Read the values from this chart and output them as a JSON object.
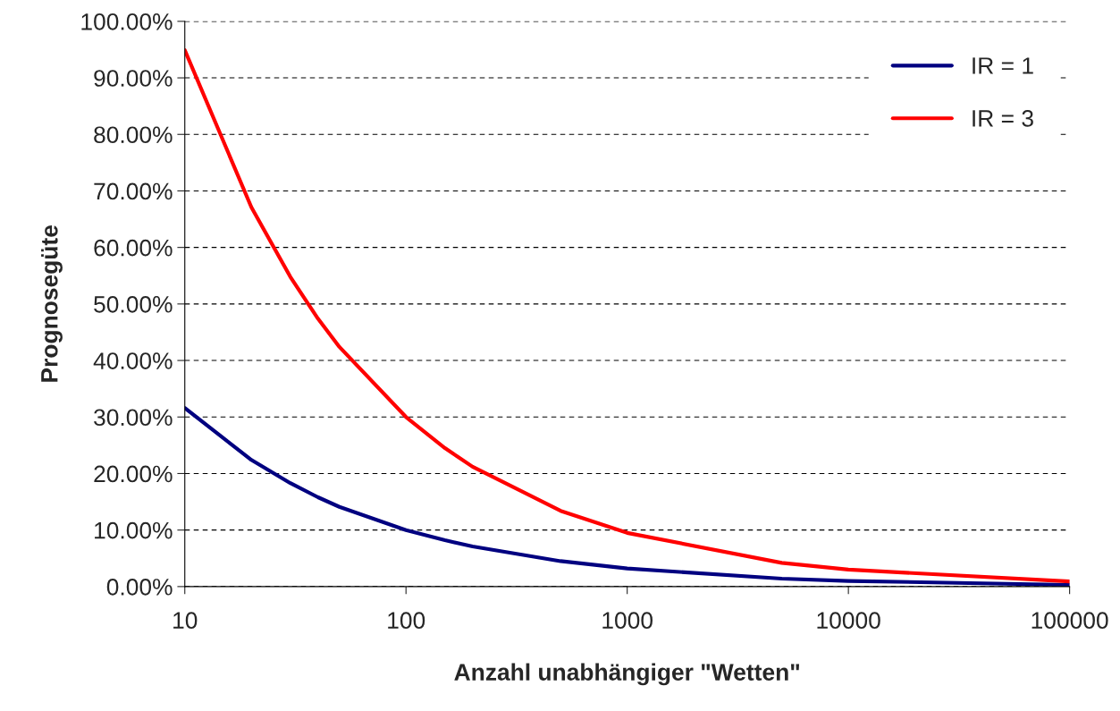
{
  "chart_data": {
    "type": "line",
    "xlabel": "Anzahl unabhängiger \"Wetten\"",
    "ylabel": "Prognosegüte",
    "x": [
      10,
      20,
      30,
      40,
      50,
      100,
      150,
      200,
      500,
      1000,
      5000,
      10000,
      100000
    ],
    "series": [
      {
        "name": "IR = 1",
        "color": "#000080",
        "values": [
          31.6,
          22.4,
          18.3,
          15.8,
          14.1,
          10.0,
          8.2,
          7.1,
          4.5,
          3.2,
          1.4,
          1.0,
          0.3
        ]
      },
      {
        "name": "IR = 3",
        "color": "#ff0000",
        "values": [
          94.9,
          67.1,
          54.8,
          47.4,
          42.4,
          30.0,
          24.5,
          21.2,
          13.4,
          9.5,
          4.2,
          3.0,
          0.9
        ]
      }
    ],
    "log": "x",
    "xlim": [
      10,
      100000
    ],
    "xticks": [
      10,
      100,
      1000,
      10000,
      100000
    ],
    "ylim": [
      0,
      100
    ],
    "yticks": [
      {
        "value": 0,
        "label": "0.00%"
      },
      {
        "value": 10,
        "label": "10.00%"
      },
      {
        "value": 20,
        "label": "20.00%"
      },
      {
        "value": 30,
        "label": "30.00%"
      },
      {
        "value": 40,
        "label": "40.00%"
      },
      {
        "value": 50,
        "label": "50.00%"
      },
      {
        "value": 60,
        "label": "60.00%"
      },
      {
        "value": 70,
        "label": "70.00%"
      },
      {
        "value": 80,
        "label": "80.00%"
      },
      {
        "value": 90,
        "label": "90.00%"
      },
      {
        "value": 100,
        "label": "100.00%"
      }
    ],
    "grid": "y",
    "legend": "top right",
    "marker": "none",
    "line_style": "solid"
  }
}
